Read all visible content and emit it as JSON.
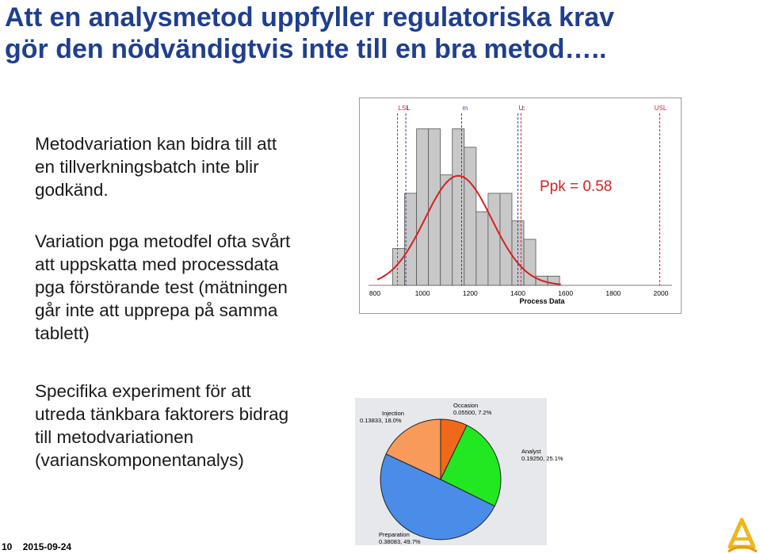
{
  "slide": {
    "title_lines": [
      "Att en analysmetod uppfyller regulatoriska krav",
      "gör den nödvändigtvis inte till en bra metod….."
    ],
    "paragraph1": [
      "Metodvariation kan bidra till att",
      "en tillverkningsbatch inte blir",
      "godkänd."
    ],
    "paragraph2": [
      "Variation pga metodfel ofta svårt",
      "att uppskatta med processdata",
      "pga förstörande test (mätningen",
      "går inte att upprepa på samma",
      "tablett)"
    ],
    "paragraph3": [
      "Specifika experiment för att",
      "utreda tänkbara faktorers bidrag",
      "till metodvariationen",
      "(varianskomponentanalys)"
    ],
    "footer": {
      "page": "10",
      "date": "2015-09-24"
    },
    "logo_icon": "company-logo-icon"
  },
  "chart_data": [
    {
      "type": "bar",
      "subtype": "histogram",
      "annotation": "Ppk = 0.58",
      "xlabel": "Process Data",
      "xlim": [
        800,
        2000
      ],
      "x_ticks": [
        800,
        1000,
        1200,
        1400,
        1600,
        1800,
        2000
      ],
      "bin_width": 50,
      "bin_starts": [
        875,
        925,
        975,
        1025,
        1075,
        1125,
        1175,
        1225,
        1275,
        1325,
        1375,
        1425,
        1475,
        1525
      ],
      "counts": [
        4,
        10,
        17,
        17,
        12,
        17,
        15,
        8,
        10,
        10,
        7,
        5,
        1,
        1
      ],
      "ylim": [
        0,
        18
      ],
      "fitted_curve": {
        "mean": 1150,
        "sd": 140,
        "peak_count": 11.9,
        "color": "#d62020"
      },
      "reference_lines": [
        {
          "label": "LSL",
          "value": 895,
          "color": "#d62020"
        },
        {
          "label": "L",
          "value": 930,
          "color": "#3a3aaa"
        },
        {
          "label": "m",
          "value": 1164,
          "color": "#3a3aaa"
        },
        {
          "label": "U",
          "value": 1400,
          "color": "#3a3aaa"
        },
        {
          "label": "c",
          "value": 1413,
          "color": "#d62020"
        },
        {
          "label": "USL",
          "value": 1995,
          "color": "#d62020"
        }
      ],
      "grid": false
    },
    {
      "type": "pie",
      "slices": [
        {
          "label": "Occasion",
          "value": 0.055,
          "percent": "7.2%",
          "color": "#f0691a"
        },
        {
          "label": "Analyst",
          "value": 0.1925,
          "percent": "25.1%",
          "color": "#22e822"
        },
        {
          "label": "Preparation",
          "value": 0.38083,
          "percent": "49.7%",
          "color": "#4a8de8"
        },
        {
          "label": "Injection",
          "value": 0.13833,
          "percent": "18.0%",
          "color": "#f79a5a"
        }
      ],
      "label_texts": {
        "Occasion": "0.05500, 7.2%",
        "Analyst": "0.19250, 25.1%",
        "Preparation": "0.38083, 49.7%",
        "Injection": "0.13833, 18.0%"
      },
      "background": "#e6e8ec"
    }
  ]
}
